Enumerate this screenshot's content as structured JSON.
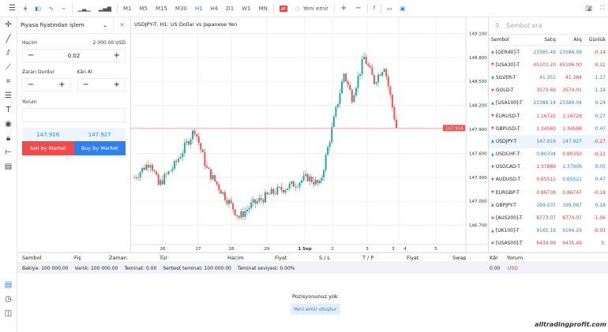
{
  "toolbar": {
    "timeframes": [
      "M1",
      "M5",
      "M15",
      "M30",
      "H1",
      "H4",
      "D1",
      "W1",
      "MN"
    ],
    "active_timeframe": "H1",
    "new_order": "Yeni emir"
  },
  "order_panel": {
    "title": "Piyasa fiyatından işlem",
    "volume_label": "Hacim",
    "volume_value_usd": "2 000.00 USD",
    "volume": "0.02",
    "sl_label": "Zararı Durdur",
    "tp_label": "Kârı Al",
    "comment_label": "Yorum",
    "comment_value": "",
    "bid": "147.916",
    "ask": "147.927",
    "sell_label": "Sell by Market",
    "buy_label": "Buy by Market"
  },
  "chart": {
    "title": "USDJPY-T, H1: US Dollar vs Japanese Yen",
    "current_price": "147.916",
    "price_ticks": [
      "149.100",
      "148.800",
      "148.500",
      "148.200",
      "147.900",
      "147.600",
      "147.300",
      "147.000",
      "146.700"
    ],
    "date_ticks": [
      "26",
      "27",
      "28",
      "29",
      "1 Sep",
      "2",
      "3",
      "3",
      "4",
      "5"
    ],
    "colors": {
      "up": "#26a69a",
      "down": "#ef5350",
      "price_line": "#f4a6a6"
    }
  },
  "chart_data": {
    "type": "candlestick",
    "ylim": [
      146.6,
      149.3
    ],
    "close_path": [
      [
        0,
        147.3
      ],
      [
        8,
        147.5
      ],
      [
        12,
        147.2
      ],
      [
        20,
        147.45
      ],
      [
        30,
        147.9
      ],
      [
        36,
        147.4
      ],
      [
        44,
        147.1
      ],
      [
        52,
        146.8
      ],
      [
        58,
        146.95
      ],
      [
        68,
        147.1
      ],
      [
        78,
        147.2
      ],
      [
        86,
        147.3
      ],
      [
        92,
        147.2
      ],
      [
        98,
        147.9
      ],
      [
        104,
        148.6
      ],
      [
        108,
        148.3
      ],
      [
        114,
        148.8
      ],
      [
        119,
        148.5
      ],
      [
        124,
        148.7
      ],
      [
        130,
        147.92
      ]
    ]
  },
  "watchlist": {
    "search_placeholder": "Sembol ara",
    "headers": [
      "Sembol",
      "Satış",
      "Alış",
      "Günlük"
    ],
    "rows": [
      {
        "sym": "[GER40]-T",
        "dir": "up",
        "bid": "23585.49",
        "ask": "23586.99",
        "chg": "-0.14",
        "bc": "blue",
        "ac": "blue",
        "cc": "red"
      },
      {
        "sym": "[USA30]-T",
        "dir": "down",
        "bid": "45103.20",
        "ask": "45106.00",
        "chg": "-0.31",
        "bc": "red",
        "ac": "red",
        "cc": "red"
      },
      {
        "sym": "SILVER-T",
        "dir": "up",
        "bid": "41.351",
        "ask": "41.384",
        "chg": "1.17",
        "bc": "blue",
        "ac": "red",
        "cc": "blue"
      },
      {
        "sym": "GOLD-T",
        "dir": "down",
        "bid": "3573.69",
        "ask": "3574.01",
        "chg": "1.14",
        "bc": "red",
        "ac": "red",
        "cc": "blue"
      },
      {
        "sym": "[USA100]-T",
        "dir": "up",
        "bid": "23388.14",
        "ask": "23389.04",
        "chg": "0.24",
        "bc": "blue",
        "ac": "blue",
        "cc": "blue"
      },
      {
        "sym": "EURUSD-T",
        "dir": "down",
        "bid": "1.16722",
        "ask": "1.16728",
        "chg": "0.27",
        "bc": "red",
        "ac": "red",
        "cc": "blue"
      },
      {
        "sym": "GBPUSD-T",
        "dir": "down",
        "bid": "1.34560",
        "ask": "1.34568",
        "chg": "0.47",
        "bc": "red",
        "ac": "red",
        "cc": "blue"
      },
      {
        "sym": "USDJPY-T",
        "dir": "up",
        "bid": "147.916",
        "ask": "147.927",
        "chg": "-0.27",
        "bc": "blue",
        "ac": "blue",
        "cc": "red"
      },
      {
        "sym": "USDCHF-T",
        "dir": "up",
        "bid": "0.80334",
        "ask": "0.80350",
        "chg": "-0.12",
        "bc": "blue",
        "ac": "red",
        "cc": "red"
      },
      {
        "sym": "USDCAD-T",
        "dir": "down",
        "bid": "1.37889",
        "ask": "1.37906",
        "chg": "0.05",
        "bc": "red",
        "ac": "blue",
        "cc": "blue"
      },
      {
        "sym": "AUDUSD-T",
        "dir": "down",
        "bid": "0.65511",
        "ask": "0.65521",
        "chg": "0.47",
        "bc": "red",
        "ac": "blue",
        "cc": "blue"
      },
      {
        "sym": "EURGBP-T",
        "dir": "down",
        "bid": "0.86738",
        "ask": "0.86747",
        "chg": "-0.18",
        "bc": "red",
        "ac": "red",
        "cc": "red"
      },
      {
        "sym": "GBPJPY-T",
        "dir": "up",
        "bid": "199.037",
        "ask": "199.067",
        "chg": "0.18",
        "bc": "blue",
        "ac": "blue",
        "cc": "blue"
      },
      {
        "sym": "[AUS200]-T",
        "dir": "down",
        "bid": "8773.07",
        "ask": "8774.07",
        "chg": "-1.06",
        "bc": "red",
        "ac": "red",
        "cc": "red"
      },
      {
        "sym": "[UK100]-T",
        "dir": "up",
        "bid": "9165.19",
        "ask": "9166.29",
        "chg": "-0.03",
        "bc": "blue",
        "ac": "blue",
        "cc": "red"
      },
      {
        "sym": "[USA500]-T",
        "dir": "down",
        "bid": "6434.99",
        "ask": "6435.49",
        "chg": "0.",
        "bc": "red",
        "ac": "red",
        "cc": "blue"
      }
    ]
  },
  "positions": {
    "headers": [
      "Sembol",
      "Fiş",
      "Zaman",
      "Tür",
      "Hacim",
      "Fiyat",
      "S / L",
      "T / P",
      "Fiyat",
      "Swap",
      "Kâr",
      "Yorum"
    ],
    "balance": "Bakiye: 100 000.00",
    "equity": "Varlık: 100 000.00",
    "margin": "Teminat: 0.00",
    "free_margin": "Serbest teminat: 100 000.00",
    "margin_level": "Teminat seviyesi: 0.00%",
    "profit": "0.00",
    "currency": "USD",
    "empty": "Pozisyonunuz yok",
    "create_order": "Yeni emir oluştur"
  },
  "watermark": "alltradingprofit.com"
}
